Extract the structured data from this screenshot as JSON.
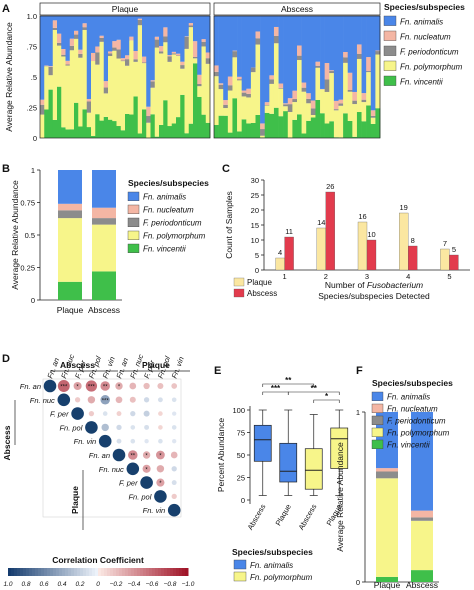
{
  "colors": {
    "an": "#4a86e8",
    "nuc": "#f4b6a4",
    "per": "#8c8c8c",
    "pol": "#f7f58a",
    "vin": "#3fbf4a",
    "plaqueBar": "#fbe7a1",
    "abscessBar": "#e23b4d"
  },
  "species_title": "Species/subspecies",
  "species": [
    {
      "key": "an",
      "label": "Fn. animalis"
    },
    {
      "key": "nuc",
      "label": "Fn. nucleatum"
    },
    {
      "key": "per",
      "label": "F. periodonticum"
    },
    {
      "key": "pol",
      "label": "Fn. polymorphum"
    },
    {
      "key": "vin",
      "label": "Fn. vincentii"
    }
  ],
  "chart_data": [
    {
      "panel": "A",
      "type": "bar",
      "stacked": true,
      "ylabel": "Average Relative Abundance",
      "yticks": [
        "0",
        ".25",
        ".5",
        ".75",
        "1.0"
      ],
      "groups": [
        "Plaque",
        "Abscess"
      ],
      "samples_per_group": [
        40,
        36
      ],
      "ylim": [
        0,
        1
      ]
    },
    {
      "panel": "B",
      "type": "bar",
      "stacked": true,
      "ylabel": "Average Relative Abundance",
      "yticks": [
        "0",
        "0.25",
        "0.5",
        "0.75",
        "1"
      ],
      "categories": [
        "Plaque",
        "Abscess"
      ],
      "series": [
        {
          "key": "vin",
          "values": [
            0.14,
            0.22
          ]
        },
        {
          "key": "pol",
          "values": [
            0.49,
            0.36
          ]
        },
        {
          "key": "per",
          "values": [
            0.06,
            0.05
          ]
        },
        {
          "key": "nuc",
          "values": [
            0.05,
            0.08
          ]
        },
        {
          "key": "an",
          "values": [
            0.26,
            0.29
          ]
        }
      ],
      "ylim": [
        0,
        1
      ]
    },
    {
      "panel": "C",
      "type": "bar",
      "ylabel": "Count of Samples",
      "xlabel_main": "Number of",
      "xlabel_italic": "Fusobacterium",
      "xlabel_line2": "Species/subspecies Detected",
      "categories": [
        "1",
        "2",
        "3",
        "4",
        "5"
      ],
      "yticks": [
        "0",
        "5",
        "10",
        "15",
        "20",
        "25",
        "30"
      ],
      "series": [
        {
          "name": "Plaque",
          "values": [
            4,
            14,
            16,
            19,
            7
          ]
        },
        {
          "name": "Abscess",
          "values": [
            11,
            26,
            10,
            8,
            5
          ]
        }
      ],
      "ylim": [
        0,
        30
      ]
    },
    {
      "panel": "D",
      "type": "heatmap",
      "group_abscess": "Abscess",
      "group_plaque": "Plaque",
      "cols": [
        "Fn. an",
        "Fn. nuc",
        "F. per",
        "Fn. pol",
        "Fn. vin",
        "Fn. an",
        "Fn. nuc",
        "F. per",
        "Fn. pol",
        "Fn. vin"
      ],
      "row_labels": [
        "Fn. an",
        "Fn. nuc",
        "F. per",
        "Fn. pol",
        "Fn. vin",
        "Fn. an",
        "Fn. nuc",
        "F. per",
        "Fn. pol",
        "Fn. vin"
      ],
      "colorbar_title": "Correlation Coefficient",
      "colorbar_ticks": [
        "1.0",
        "0.8",
        "0.6",
        "0.4",
        "0.2",
        "0",
        "−0.2",
        "−0.4",
        "−0.6",
        "−0.8",
        "−1.0"
      ],
      "cells": [
        {
          "r": 0,
          "c": 1,
          "v": -0.62,
          "s": "***"
        },
        {
          "r": 0,
          "c": 2,
          "v": -0.35,
          "s": "*"
        },
        {
          "r": 0,
          "c": 3,
          "v": -0.58,
          "s": "***"
        },
        {
          "r": 0,
          "c": 4,
          "v": -0.45,
          "s": "**"
        },
        {
          "r": 0,
          "c": 5,
          "v": -0.3,
          "s": "*"
        },
        {
          "r": 0,
          "c": 6,
          "v": -0.25,
          "s": ""
        },
        {
          "r": 0,
          "c": 7,
          "v": -0.22,
          "s": ""
        },
        {
          "r": 0,
          "c": 8,
          "v": -0.2,
          "s": ""
        },
        {
          "r": 0,
          "c": 9,
          "v": -0.18,
          "s": ""
        },
        {
          "r": 1,
          "c": 2,
          "v": -0.15,
          "s": ""
        },
        {
          "r": 1,
          "c": 3,
          "v": -0.3,
          "s": ""
        },
        {
          "r": 1,
          "c": 4,
          "v": 0.45,
          "s": "***"
        },
        {
          "r": 1,
          "c": 5,
          "v": -0.25,
          "s": ""
        },
        {
          "r": 1,
          "c": 6,
          "v": -0.2,
          "s": ""
        },
        {
          "r": 1,
          "c": 7,
          "v": 0.15,
          "s": ""
        },
        {
          "r": 1,
          "c": 8,
          "v": 0.12,
          "s": ""
        },
        {
          "r": 1,
          "c": 9,
          "v": 0.1,
          "s": ""
        },
        {
          "r": 2,
          "c": 3,
          "v": -0.15,
          "s": ""
        },
        {
          "r": 2,
          "c": 4,
          "v": 0.1,
          "s": ""
        },
        {
          "r": 2,
          "c": 5,
          "v": -0.12,
          "s": ""
        },
        {
          "r": 2,
          "c": 6,
          "v": 0.15,
          "s": ""
        },
        {
          "r": 2,
          "c": 7,
          "v": 0.2,
          "s": ""
        },
        {
          "r": 2,
          "c": 8,
          "v": -0.1,
          "s": ""
        },
        {
          "r": 2,
          "c": 9,
          "v": 0.08,
          "s": ""
        },
        {
          "r": 3,
          "c": 4,
          "v": 0.3,
          "s": ""
        },
        {
          "r": 3,
          "c": 5,
          "v": 0.15,
          "s": ""
        },
        {
          "r": 3,
          "c": 6,
          "v": 0.1,
          "s": ""
        },
        {
          "r": 3,
          "c": 7,
          "v": 0.12,
          "s": ""
        },
        {
          "r": 3,
          "c": 8,
          "v": -0.1,
          "s": ""
        },
        {
          "r": 3,
          "c": 9,
          "v": 0.1,
          "s": ""
        },
        {
          "r": 4,
          "c": 5,
          "v": 0.12,
          "s": ""
        },
        {
          "r": 4,
          "c": 6,
          "v": 0.1,
          "s": ""
        },
        {
          "r": 4,
          "c": 7,
          "v": 0.08,
          "s": ""
        },
        {
          "r": 4,
          "c": 8,
          "v": 0.1,
          "s": ""
        },
        {
          "r": 4,
          "c": 9,
          "v": 0.08,
          "s": ""
        },
        {
          "r": 5,
          "c": 6,
          "v": -0.45,
          "s": "**"
        },
        {
          "r": 5,
          "c": 7,
          "v": -0.3,
          "s": "*"
        },
        {
          "r": 5,
          "c": 8,
          "v": -0.4,
          "s": "*"
        },
        {
          "r": 5,
          "c": 9,
          "v": -0.25,
          "s": ""
        },
        {
          "r": 6,
          "c": 7,
          "v": -0.35,
          "s": "*"
        },
        {
          "r": 6,
          "c": 8,
          "v": -0.3,
          "s": ""
        },
        {
          "r": 6,
          "c": 9,
          "v": 0.15,
          "s": ""
        },
        {
          "r": 7,
          "c": 8,
          "v": -0.35,
          "s": "*"
        },
        {
          "r": 7,
          "c": 9,
          "v": 0.12,
          "s": ""
        },
        {
          "r": 8,
          "c": 9,
          "v": -0.15,
          "s": ""
        }
      ]
    },
    {
      "panel": "E",
      "type": "box",
      "ylabel": "Percent Abundance",
      "yticks": [
        "0",
        "25",
        "50",
        "75",
        "100"
      ],
      "categories": [
        "Abscess",
        "Plaque",
        "Abscess",
        "Plaque"
      ],
      "boxes": [
        {
          "key": "an",
          "min": 5,
          "q1": 43,
          "median": 67,
          "q3": 83,
          "max": 100
        },
        {
          "key": "an",
          "min": 5,
          "q1": 20,
          "median": 32,
          "q3": 63,
          "max": 100
        },
        {
          "key": "pol",
          "min": 5,
          "q1": 12,
          "median": 33,
          "q3": 57,
          "max": 95
        },
        {
          "key": "pol",
          "min": 5,
          "q1": 35,
          "median": 68,
          "q3": 80,
          "max": 100
        }
      ],
      "significance": [
        {
          "from": 0,
          "to": 2,
          "label": "**"
        },
        {
          "from": 0,
          "to": 1,
          "label": "***"
        },
        {
          "from": 1,
          "to": 3,
          "label": "**"
        },
        {
          "from": 2,
          "to": 3,
          "label": "*"
        }
      ],
      "legend_title": "Species/subspecies",
      "legend": [
        {
          "key": "an",
          "label": "Fn. animalis"
        },
        {
          "key": "pol",
          "label": "Fn. polymorphum"
        }
      ],
      "ylim": [
        0,
        100
      ]
    },
    {
      "panel": "F",
      "type": "bar",
      "stacked": true,
      "ylabel": "Average Relative Abundance",
      "yticks": [
        "0",
        "1"
      ],
      "categories": [
        "Plaque",
        "Abscess"
      ],
      "series": [
        {
          "key": "vin",
          "values": [
            0.03,
            0.07
          ]
        },
        {
          "key": "pol",
          "values": [
            0.58,
            0.29
          ]
        },
        {
          "key": "per",
          "values": [
            0.04,
            0.02
          ]
        },
        {
          "key": "nuc",
          "values": [
            0.02,
            0.04
          ]
        },
        {
          "key": "an",
          "values": [
            0.33,
            0.58
          ]
        }
      ],
      "ylim": [
        0,
        1
      ]
    }
  ]
}
